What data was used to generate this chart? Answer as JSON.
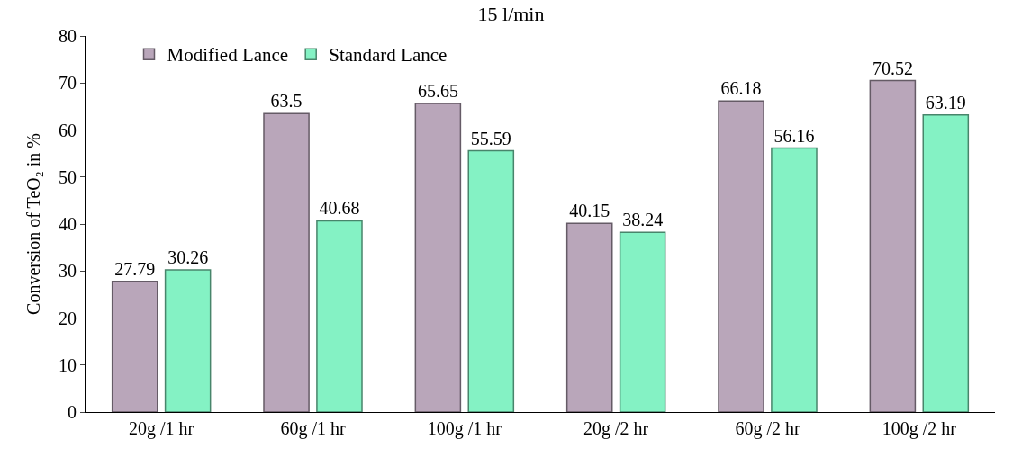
{
  "chart_data": {
    "type": "bar",
    "title": "15 l/min",
    "ylabel": "Conversion of TeO₂ in %",
    "categories": [
      "20g /1 hr",
      "60g /1 hr",
      "100g /1 hr",
      "20g /2 hr",
      "60g /2 hr",
      "100g /2 hr"
    ],
    "series": [
      {
        "name": "Modified Lance",
        "color": "#b9a6ba",
        "values": [
          27.79,
          63.5,
          65.65,
          40.15,
          66.18,
          70.52
        ]
      },
      {
        "name": "Standard Lance",
        "color": "#84f2c4",
        "values": [
          30.26,
          40.68,
          55.59,
          38.24,
          56.16,
          63.19
        ]
      }
    ],
    "ylim": [
      0,
      80
    ],
    "yticks": [
      0,
      10,
      20,
      30,
      40,
      50,
      60,
      70,
      80
    ],
    "legend": "top left",
    "data_labels": true
  }
}
